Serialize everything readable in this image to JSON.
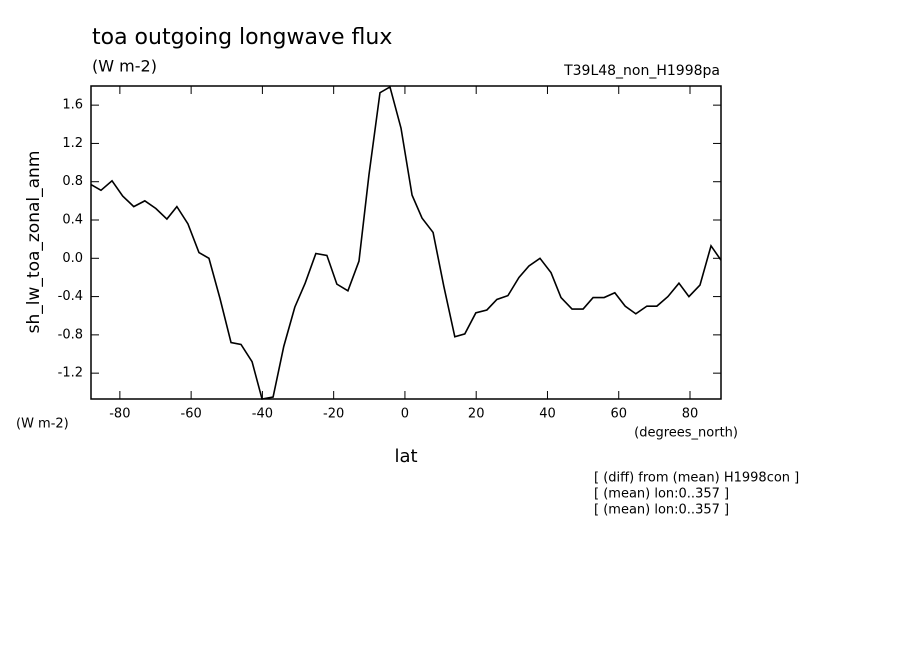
{
  "chart_data": {
    "type": "line",
    "title": "toa outgoing longwave flux",
    "subtitle": "(W m-2)",
    "run_label": "T39L48_non_H1998pa",
    "y_label": "sh_lw_toa_zonal_anm",
    "y_units": "(W m-2)",
    "x_label": "lat",
    "x_units": "(degrees_north)",
    "notes": [
      "[ (diff) from (mean) H1998con ]",
      "[ (mean) lon:0..357 ]",
      "[ (mean) lon:0..357 ]"
    ],
    "color": "#000000",
    "xlim": [
      -88.1,
      88.7
    ],
    "ylim": [
      -1.47,
      1.8
    ],
    "xticks": [
      -80,
      -60,
      -40,
      -20,
      0,
      20,
      40,
      60,
      80
    ],
    "yticks": [
      -1.2,
      -0.8,
      -0.4,
      {
        "value": 0,
        "label": "0.0"
      },
      0.4,
      0.8,
      1.2,
      1.6
    ],
    "x": [
      -88.1,
      -85.3,
      -82.2,
      -79.2,
      -76.1,
      -73.0,
      -69.9,
      -66.8,
      -64.0,
      -60.9,
      -57.8,
      -55.0,
      -51.9,
      -48.8,
      -46.0,
      -42.9,
      -40.1,
      -37.0,
      -34.0,
      -30.9,
      -28.0,
      -25.0,
      -21.9,
      -19.1,
      -16.0,
      -12.9,
      -10.1,
      -7.0,
      -4.2,
      -1.1,
      2.0,
      4.8,
      7.9,
      10.9,
      14.0,
      16.8,
      19.9,
      23.0,
      25.8,
      28.9,
      32.0,
      34.8,
      37.9,
      41.0,
      43.8,
      46.9,
      50.0,
      52.8,
      55.9,
      58.9,
      61.8,
      64.8,
      67.9,
      70.7,
      73.8,
      76.9,
      79.7,
      82.8,
      85.9,
      88.7
    ],
    "values": [
      0.77,
      0.71,
      0.81,
      0.65,
      0.54,
      0.6,
      0.52,
      0.41,
      0.54,
      0.36,
      0.06,
      0.0,
      -0.42,
      -0.88,
      -0.9,
      -1.08,
      -1.47,
      -1.45,
      -0.92,
      -0.51,
      -0.26,
      0.05,
      0.03,
      -0.27,
      -0.34,
      -0.03,
      0.87,
      1.73,
      1.79,
      1.36,
      0.66,
      0.42,
      0.27,
      -0.29,
      -0.82,
      -0.79,
      -0.57,
      -0.54,
      -0.43,
      -0.39,
      -0.2,
      -0.08,
      0.0,
      -0.15,
      -0.41,
      -0.53,
      -0.53,
      -0.41,
      -0.41,
      -0.36,
      -0.5,
      -0.58,
      -0.5,
      -0.5,
      -0.4,
      -0.26,
      -0.4,
      -0.28,
      0.13,
      -0.02
    ]
  }
}
